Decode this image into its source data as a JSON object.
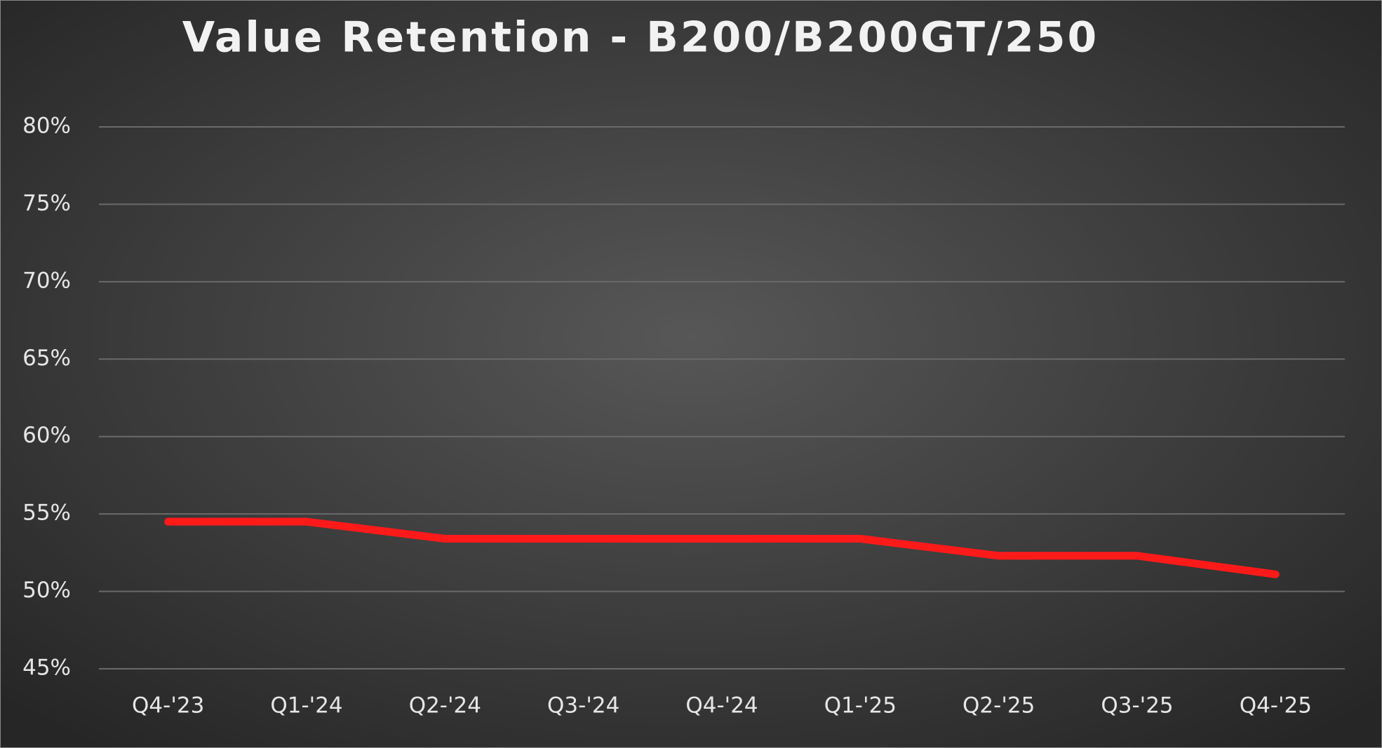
{
  "chart_data": {
    "type": "line",
    "title": "Value Retention - B200/B200GT/250",
    "categories": [
      "Q4-'23",
      "Q1-'24",
      "Q2-'24",
      "Q3-'24",
      "Q4-'24",
      "Q1-'25",
      "Q2-'25",
      "Q3-'25",
      "Q4-'25"
    ],
    "series": [
      {
        "color": "#ff1a1a",
        "values": [
          54.5,
          54.5,
          53.4,
          53.4,
          53.4,
          53.4,
          52.3,
          52.3,
          51.1
        ]
      }
    ],
    "ylim": [
      45,
      80
    ],
    "yticks": [
      {
        "value": 45,
        "label": "45%"
      },
      {
        "value": 50,
        "label": "50%"
      },
      {
        "value": 55,
        "label": "55%"
      },
      {
        "value": 60,
        "label": "60%"
      },
      {
        "value": 65,
        "label": "65%"
      },
      {
        "value": 70,
        "label": "70%"
      },
      {
        "value": 75,
        "label": "75%"
      },
      {
        "value": 80,
        "label": "80%"
      }
    ],
    "grid": true
  }
}
